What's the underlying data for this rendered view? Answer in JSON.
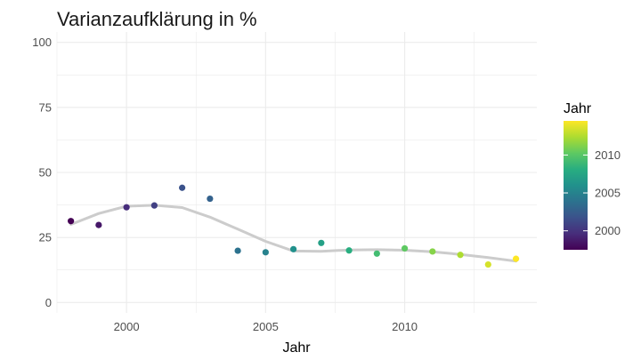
{
  "chart_data": {
    "type": "scatter",
    "title": "Varianzaufklärung in %",
    "xlabel": "Jahr",
    "ylabel": "",
    "xlim": [
      1997.5,
      2014.75
    ],
    "ylim": [
      -4,
      104
    ],
    "x_ticks": [
      2000,
      2005,
      2010
    ],
    "y_ticks": [
      0,
      25,
      50,
      75,
      100
    ],
    "grid": true,
    "x": [
      1998,
      1999,
      2000,
      2001,
      2002,
      2003,
      2004,
      2005,
      2006,
      2007,
      2008,
      2009,
      2010,
      2011,
      2012,
      2013,
      2014
    ],
    "y": [
      31.3,
      29.8,
      36.6,
      37.3,
      44.1,
      39.9,
      19.9,
      19.3,
      20.5,
      22.9,
      20.0,
      18.8,
      20.8,
      19.6,
      18.3,
      14.6,
      16.8
    ],
    "smooth": {
      "x": [
        1998,
        1999,
        2000,
        2001,
        2002,
        2003,
        2004,
        2005,
        2006,
        2007,
        2008,
        2009,
        2010,
        2011,
        2012,
        2013,
        2014
      ],
      "y": [
        30.0,
        34.2,
        37.0,
        37.4,
        36.5,
        32.8,
        28.2,
        23.5,
        19.8,
        19.7,
        20.2,
        20.3,
        20.1,
        19.5,
        18.5,
        17.3,
        15.9
      ],
      "color": "#cccccc"
    },
    "legend": {
      "title": "Jahr",
      "position": "right",
      "ticks": [
        2000,
        2005,
        2010
      ],
      "range": [
        1998,
        2014
      ],
      "colormap": "viridis"
    }
  }
}
